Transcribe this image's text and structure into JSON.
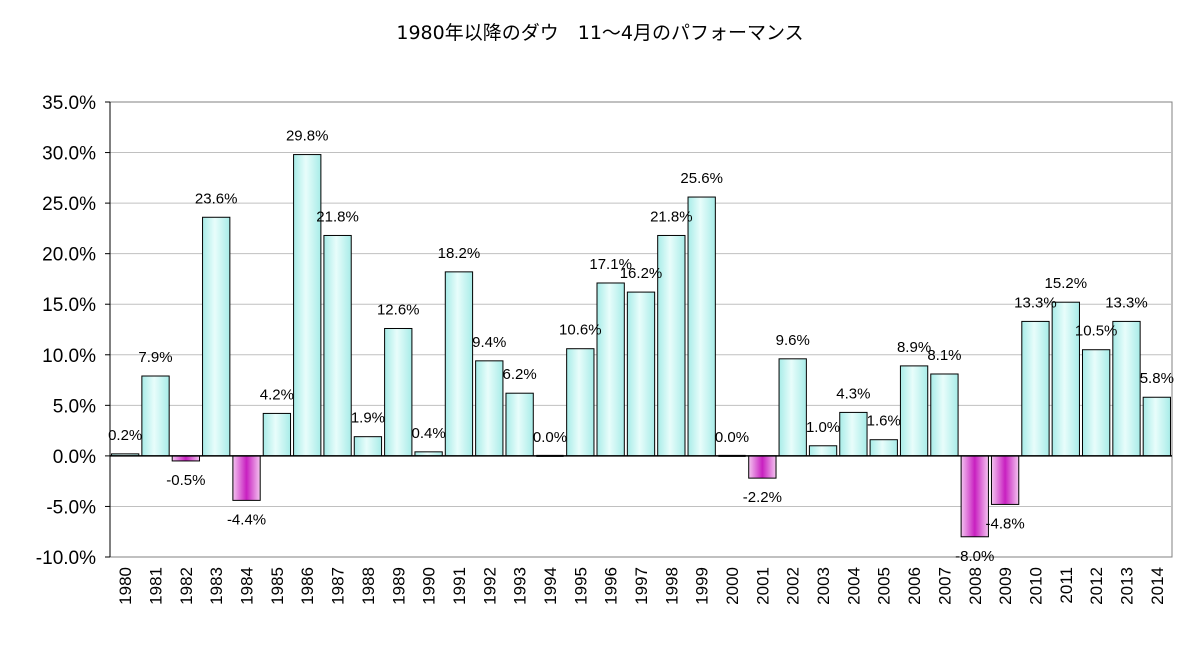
{
  "chart_data": {
    "type": "bar",
    "title": "1980年以降のダウ　11～4月のパフォーマンス",
    "xlabel": "",
    "ylabel": "",
    "ylim": [
      -10.0,
      35.0
    ],
    "ytick_step": 5.0,
    "grid": true,
    "legend": "none",
    "categories": [
      "1980",
      "1981",
      "1982",
      "1983",
      "1984",
      "1985",
      "1986",
      "1987",
      "1988",
      "1989",
      "1990",
      "1991",
      "1992",
      "1993",
      "1994",
      "1995",
      "1996",
      "1997",
      "1998",
      "1999",
      "2000",
      "2001",
      "2002",
      "2003",
      "2004",
      "2005",
      "2006",
      "2007",
      "2008",
      "2009",
      "2010",
      "2011",
      "2012",
      "2013",
      "2014"
    ],
    "values": [
      0.2,
      7.9,
      -0.5,
      23.6,
      -4.4,
      4.2,
      29.8,
      21.8,
      1.9,
      12.6,
      0.4,
      18.2,
      9.4,
      6.2,
      0.0,
      10.6,
      17.1,
      16.2,
      21.8,
      25.6,
      0.0,
      -2.2,
      9.6,
      1.0,
      4.3,
      1.6,
      8.9,
      8.1,
      -8.0,
      -4.8,
      13.3,
      15.2,
      10.5,
      13.3,
      5.8
    ],
    "data_labels": [
      "0.2%",
      "7.9%",
      "-0.5%",
      "23.6%",
      "-4.4%",
      "4.2%",
      "29.8%",
      "21.8%",
      "1.9%",
      "12.6%",
      "0.4%",
      "18.2%",
      "9.4%",
      "6.2%",
      "0.0%",
      "10.6%",
      "17.1%",
      "16.2%",
      "21.8%",
      "25.6%",
      "0.0%",
      "-2.2%",
      "9.6%",
      "1.0%",
      "4.3%",
      "1.6%",
      "8.9%",
      "8.1%",
      "-8.0%",
      "-4.8%",
      "13.3%",
      "15.2%",
      "10.5%",
      "13.3%",
      "5.8%"
    ],
    "ytick_labels": [
      "35.0%",
      "30.0%",
      "25.0%",
      "20.0%",
      "15.0%",
      "10.0%",
      "5.0%",
      "0.0%",
      "-5.0%",
      "-10.0%"
    ],
    "colors": {
      "positive": "#c8f4f0",
      "negative": "#d040c8",
      "grid": "#c0c0c0",
      "axis": "#000000"
    }
  }
}
